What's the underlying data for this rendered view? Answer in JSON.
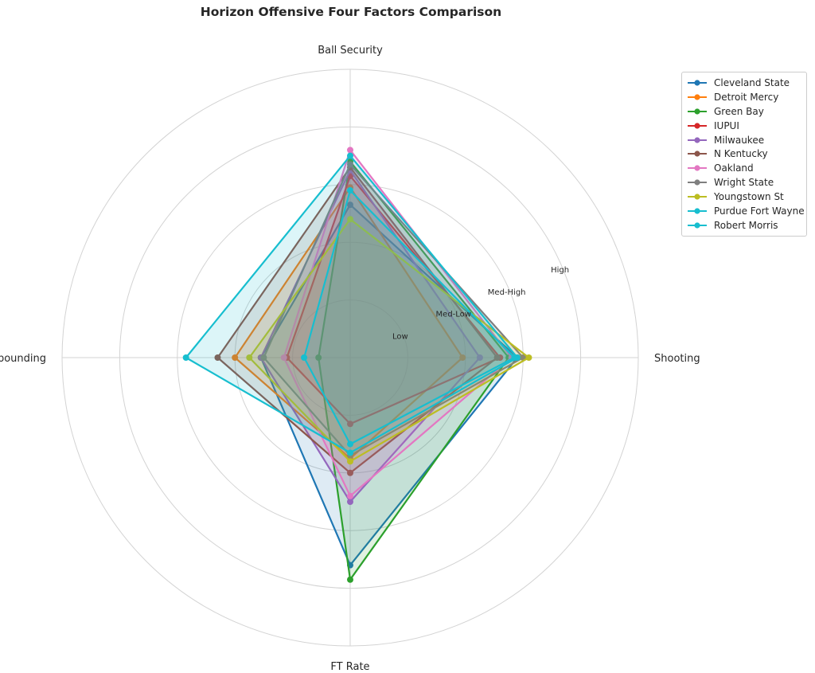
{
  "chart_data": {
    "type": "radar",
    "title": "Horizon Offensive Four Factors Comparison",
    "axes": [
      "Shooting",
      "Ball Security",
      "Off Rebounding",
      "FT Rate"
    ],
    "ring_labels": [
      "Low",
      "Med-Low",
      "Med-High",
      "High"
    ],
    "rlim": [
      0,
      5
    ],
    "grid": true,
    "legend_position": "upper-right-outside",
    "series": [
      {
        "name": "Cleveland State",
        "color": "#1f77b4",
        "values": [
          2.9,
          2.65,
          1.55,
          3.6
        ]
      },
      {
        "name": "Detroit Mercy",
        "color": "#ff7f0e",
        "values": [
          1.95,
          2.95,
          2.0,
          1.75
        ]
      },
      {
        "name": "Green Bay",
        "color": "#2ca02c",
        "values": [
          2.75,
          3.4,
          0.55,
          3.85
        ]
      },
      {
        "name": "IUPUI",
        "color": "#d62728",
        "values": [
          2.6,
          3.15,
          1.1,
          1.15
        ]
      },
      {
        "name": "Milwaukee",
        "color": "#9467bd",
        "values": [
          2.25,
          3.25,
          1.55,
          2.5
        ]
      },
      {
        "name": "N Kentucky",
        "color": "#8c564b",
        "values": [
          2.55,
          3.3,
          2.3,
          2.0
        ]
      },
      {
        "name": "Oakland",
        "color": "#e377c2",
        "values": [
          2.8,
          3.6,
          1.15,
          2.4
        ]
      },
      {
        "name": "Wright State",
        "color": "#7f7f7f",
        "values": [
          3.0,
          3.35,
          1.5,
          1.7
        ]
      },
      {
        "name": "Youngstown St",
        "color": "#bcbd22",
        "values": [
          3.1,
          2.4,
          1.75,
          1.8
        ]
      },
      {
        "name": "Purdue Fort Wayne",
        "color": "#17becf",
        "values": [
          2.9,
          3.5,
          2.85,
          1.65
        ]
      },
      {
        "name": "Robert Morris",
        "color": "#17becf",
        "values": [
          2.85,
          2.9,
          0.8,
          1.5
        ]
      }
    ]
  }
}
